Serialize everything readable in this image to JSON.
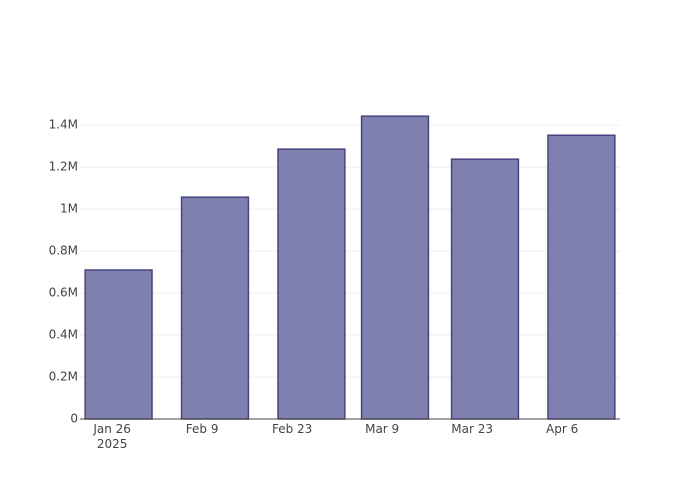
{
  "chart_data": {
    "type": "bar",
    "x": [
      "2025-01-27",
      "2025-02-11",
      "2025-02-26",
      "2025-03-11",
      "2025-03-25",
      "2025-04-09"
    ],
    "values": [
      710000,
      1057000,
      1286000,
      1443000,
      1238000,
      1352000
    ],
    "color": "#7f7fb0",
    "edgecolor": "#45457f",
    "xlim": [
      "2025-01-21",
      "2025-04-15"
    ],
    "xticks": [
      {
        "value": "2025-01-26",
        "label": "Jan 26\n2025"
      },
      {
        "value": "2025-02-09",
        "label": "Feb 9"
      },
      {
        "value": "2025-02-23",
        "label": "Feb 23"
      },
      {
        "value": "2025-03-09",
        "label": "Mar 9"
      },
      {
        "value": "2025-03-23",
        "label": "Mar 23"
      },
      {
        "value": "2025-04-06",
        "label": "Apr 6"
      }
    ],
    "ylim": [
      0,
      1520000
    ],
    "yticks": [
      0,
      {
        "value": 200000,
        "label": "0.2M"
      },
      {
        "value": 400000,
        "label": "0.4M"
      },
      {
        "value": 600000,
        "label": "0.6M"
      },
      {
        "value": 800000,
        "label": "0.8M"
      },
      {
        "value": 1000000,
        "label": "1M"
      },
      {
        "value": 1200000,
        "label": "1.2M"
      },
      {
        "value": 1400000,
        "label": "1.4M"
      }
    ],
    "grid": true
  }
}
